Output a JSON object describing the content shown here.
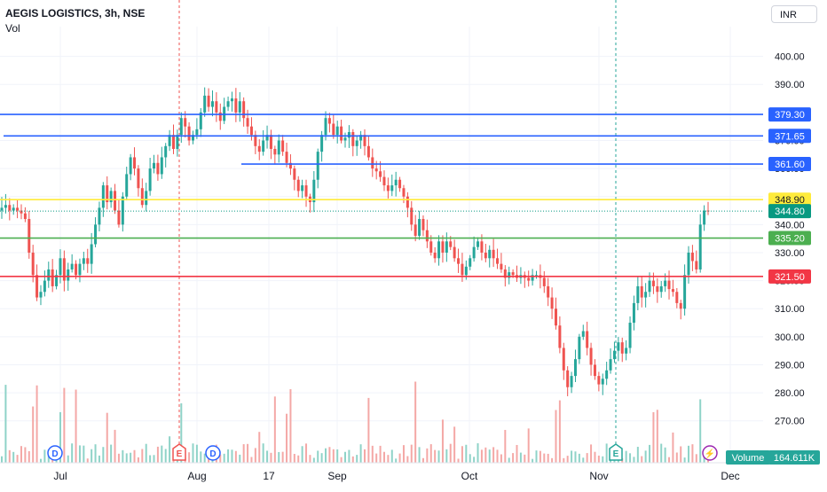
{
  "header": {
    "title": "AEGIS LOGISTICS, 3h, NSE",
    "indicator": "Vol"
  },
  "currency": "INR",
  "colors": {
    "up": "#26a69a",
    "down": "#ef5350",
    "volume_up": "#8fd3c8",
    "volume_down": "#f4a8a6",
    "grid": "#f0f3fa",
    "axis_text": "#131722"
  },
  "chart_data": {
    "type": "candlestick",
    "title": "AEGIS LOGISTICS, 3h, NSE",
    "ylim": [
      262,
      410
    ],
    "y_ticks": [
      400,
      390,
      380,
      370,
      360,
      350,
      340,
      330,
      320,
      310,
      300,
      290,
      280,
      270
    ],
    "y_tick_labels": [
      "400.00",
      "390.00",
      "380.00",
      "370.00",
      "360.00",
      "350.00",
      "340.00",
      "330.00",
      "320.00",
      "310.00",
      "300.00",
      "290.00",
      "280.00",
      "270.00"
    ],
    "x_labels": [
      "Jul",
      "Aug",
      "17",
      "Sep",
      "Oct",
      "Nov",
      "Dec"
    ],
    "horizontal_levels": [
      {
        "label": "379.30",
        "price": 379.3,
        "color": "#2962ff",
        "text_color": "#ffffff"
      },
      {
        "label": "371.65",
        "price": 371.65,
        "color": "#2962ff",
        "text_color": "#ffffff"
      },
      {
        "label": "361.60",
        "price": 361.6,
        "color": "#2962ff",
        "text_color": "#ffffff"
      },
      {
        "label": "348.90",
        "price": 348.9,
        "color": "#ffeb3b",
        "text_color": "#131722"
      },
      {
        "label": "335.20",
        "price": 335.2,
        "color": "#4caf50",
        "text_color": "#ffffff"
      },
      {
        "label": "321.50",
        "price": 321.5,
        "color": "#f23645",
        "text_color": "#ffffff"
      }
    ],
    "last_price": {
      "label": "344.80",
      "price": 344.8,
      "color": "#089981"
    },
    "event_lines": [
      {
        "date_label": "Aug",
        "offset": -0.5,
        "color": "#ef5350"
      },
      {
        "date_label": "Nov",
        "offset": 0.45,
        "color": "#26a69a"
      }
    ],
    "event_markers": [
      {
        "letter": "D",
        "date_label": "Jul",
        "offset": -0.16,
        "color": "#2962ff",
        "shape": "circle"
      },
      {
        "letter": "E",
        "date_label": "Aug",
        "offset": -0.5,
        "color": "#ef5350",
        "shape": "badge"
      },
      {
        "letter": "D",
        "date_label": "Aug",
        "offset": 0.45,
        "color": "#2962ff",
        "shape": "circle"
      },
      {
        "letter": "E",
        "date_label": "Nov",
        "offset": 0.45,
        "color": "#26a69a",
        "shape": "badge"
      },
      {
        "letter": "⚡",
        "date_label": "Dec",
        "offset": -0.7,
        "color": "#9c27b0",
        "shape": "circle"
      }
    ],
    "volume_label": "Volume",
    "volume_value": "164.611K",
    "closes": [
      346,
      347,
      345,
      346,
      345,
      344,
      342,
      330,
      322,
      314,
      316,
      320,
      324,
      318,
      322,
      328,
      320,
      324,
      326,
      322,
      326,
      328,
      326,
      333,
      340,
      346,
      354,
      348,
      352,
      345,
      340,
      350,
      358,
      364,
      360,
      353,
      347,
      352,
      360,
      362,
      358,
      364,
      368,
      372,
      367,
      372,
      378,
      375,
      370,
      372,
      374,
      380,
      386,
      382,
      384,
      380,
      377,
      382,
      384,
      385,
      380,
      384,
      378,
      375,
      372,
      368,
      366,
      370,
      372,
      367,
      365,
      370,
      366,
      362,
      360,
      356,
      352,
      354,
      350,
      348,
      356,
      366,
      372,
      378,
      376,
      372,
      375,
      370,
      371,
      373,
      368,
      370,
      372,
      368,
      364,
      360,
      359,
      357,
      354,
      352,
      354,
      356,
      353,
      350,
      346,
      340,
      336,
      342,
      338,
      334,
      330,
      328,
      334,
      330,
      334,
      332,
      328,
      326,
      322,
      325,
      328,
      332,
      334,
      330,
      328,
      331,
      328,
      326,
      324,
      321,
      323,
      322,
      321,
      322,
      321,
      320,
      322,
      322,
      321,
      318,
      314,
      310,
      304,
      296,
      288,
      282,
      286,
      292,
      300,
      302,
      296,
      290,
      286,
      283,
      285,
      288,
      292,
      295,
      298,
      294,
      296,
      305,
      312,
      318,
      314,
      316,
      320,
      318,
      316,
      318,
      320,
      317,
      316,
      312,
      310,
      322,
      330,
      327,
      324,
      340,
      345,
      344.8
    ]
  }
}
